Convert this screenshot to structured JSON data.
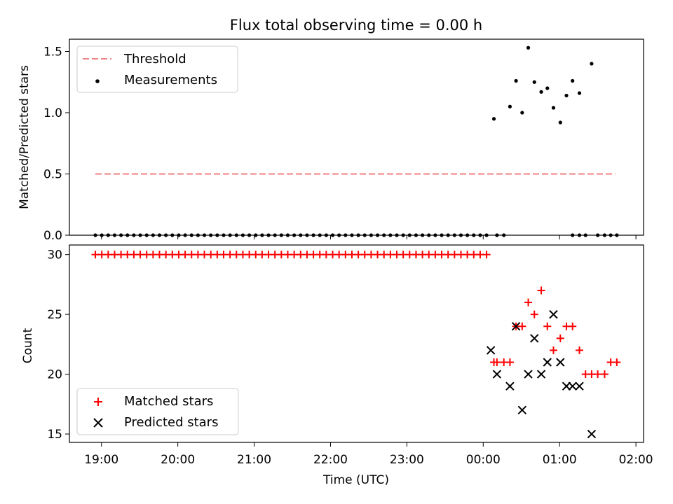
{
  "chart_data": {
    "title": "Flux total observing time = 0.00 h",
    "xlabel": "Time (UTC)",
    "x_ticks": [
      "19:00",
      "20:00",
      "21:00",
      "22:00",
      "23:00",
      "00:00",
      "01:00",
      "02:00"
    ],
    "xlim_hours": [
      18.58,
      26.1
    ],
    "panels": [
      {
        "type": "scatter",
        "ylabel": "Matched/Predicted stars",
        "ylim": [
          0,
          1.6
        ],
        "yticks": [
          "0.0",
          "0.5",
          "1.0",
          "1.5"
        ],
        "legend": {
          "placement": "top-left",
          "entries": [
            "Threshold",
            "Measurements"
          ]
        },
        "threshold": {
          "name": "Threshold",
          "value": 0.5,
          "color": "#f08080",
          "x_start": 18.92,
          "x_end": 25.73
        },
        "measurements": {
          "name": "Measurements",
          "color": "#000000",
          "x": [
            24.14,
            24.35,
            24.43,
            24.51,
            24.59,
            24.67,
            24.76,
            24.84,
            24.92,
            25.01,
            25.09,
            25.17,
            25.26,
            25.42
          ],
          "y": [
            0.95,
            1.05,
            1.26,
            1.0,
            1.53,
            1.25,
            1.17,
            1.2,
            1.04,
            0.92,
            1.14,
            1.26,
            1.16,
            1.4
          ]
        },
        "zeros_range": {
          "start": 18.92,
          "end": 24.06,
          "step": 0.084,
          "value": 0
        },
        "zeros_extra_x": [
          24.18,
          24.27,
          25.17,
          25.26,
          25.34,
          25.5,
          25.59,
          25.67,
          25.75
        ]
      },
      {
        "type": "scatter",
        "ylabel": "Count",
        "ylim": [
          14.3,
          30.8
        ],
        "yticks": [
          "15",
          "20",
          "25",
          "30"
        ],
        "legend": {
          "placement": "lower-left",
          "entries": [
            "Matched stars",
            "Predicted stars"
          ]
        },
        "matched": {
          "name": "Matched stars",
          "marker": "+",
          "color": "#ff0000",
          "x": [
            24.14,
            24.18,
            24.27,
            24.35,
            24.43,
            24.51,
            24.59,
            24.67,
            24.76,
            24.84,
            24.92,
            25.01,
            25.09,
            25.17,
            25.26,
            25.34,
            25.42,
            25.5,
            25.59,
            25.67,
            25.75
          ],
          "y": [
            21,
            21,
            21,
            21,
            24,
            24,
            26,
            25,
            27,
            24,
            22,
            23,
            24,
            24,
            22,
            20,
            20,
            20,
            20,
            21,
            21
          ],
          "const_range": {
            "start": 18.92,
            "end": 24.06,
            "step": 0.084,
            "value": 30
          }
        },
        "predicted": {
          "name": "Predicted stars",
          "marker": "x",
          "color": "#000000",
          "x": [
            24.1,
            24.18,
            24.35,
            24.43,
            24.51,
            24.59,
            24.67,
            24.76,
            24.84,
            24.92,
            25.01,
            25.09,
            25.17,
            25.26,
            25.42
          ],
          "y": [
            22,
            20,
            19,
            24,
            17,
            20,
            23,
            20,
            21,
            25,
            21,
            19,
            19,
            19,
            15
          ]
        }
      }
    ]
  }
}
